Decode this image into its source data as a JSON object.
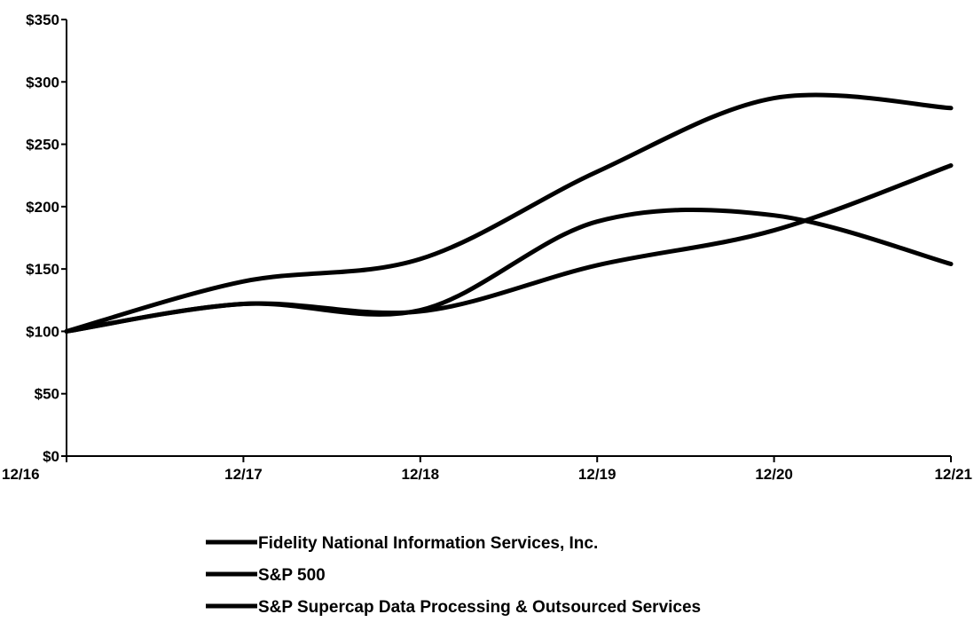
{
  "chart_data": {
    "type": "line",
    "title": "",
    "xlabel": "",
    "ylabel": "",
    "categories": [
      "12/16",
      "12/17",
      "12/18",
      "12/19",
      "12/20",
      "12/21"
    ],
    "ylim": [
      0,
      350
    ],
    "yticks": [
      0,
      50,
      100,
      150,
      200,
      250,
      300,
      350
    ],
    "ytick_labels": [
      "$0",
      "$50",
      "$100",
      "$150",
      "$200",
      "$250",
      "$300",
      "$350"
    ],
    "grid": false,
    "legend_position": "bottom",
    "series": [
      {
        "name": "Fidelity National Information Services, Inc.",
        "values": [
          100,
          122,
          117,
          188,
          193,
          154
        ],
        "color": "#000000"
      },
      {
        "name": "S&P 500",
        "values": [
          100,
          122,
          116,
          153,
          181,
          233
        ],
        "color": "#000000"
      },
      {
        "name": "S&P Supercap Data Processing & Outsourced Services",
        "values": [
          100,
          140,
          158,
          228,
          287,
          279
        ],
        "color": "#000000"
      }
    ]
  }
}
